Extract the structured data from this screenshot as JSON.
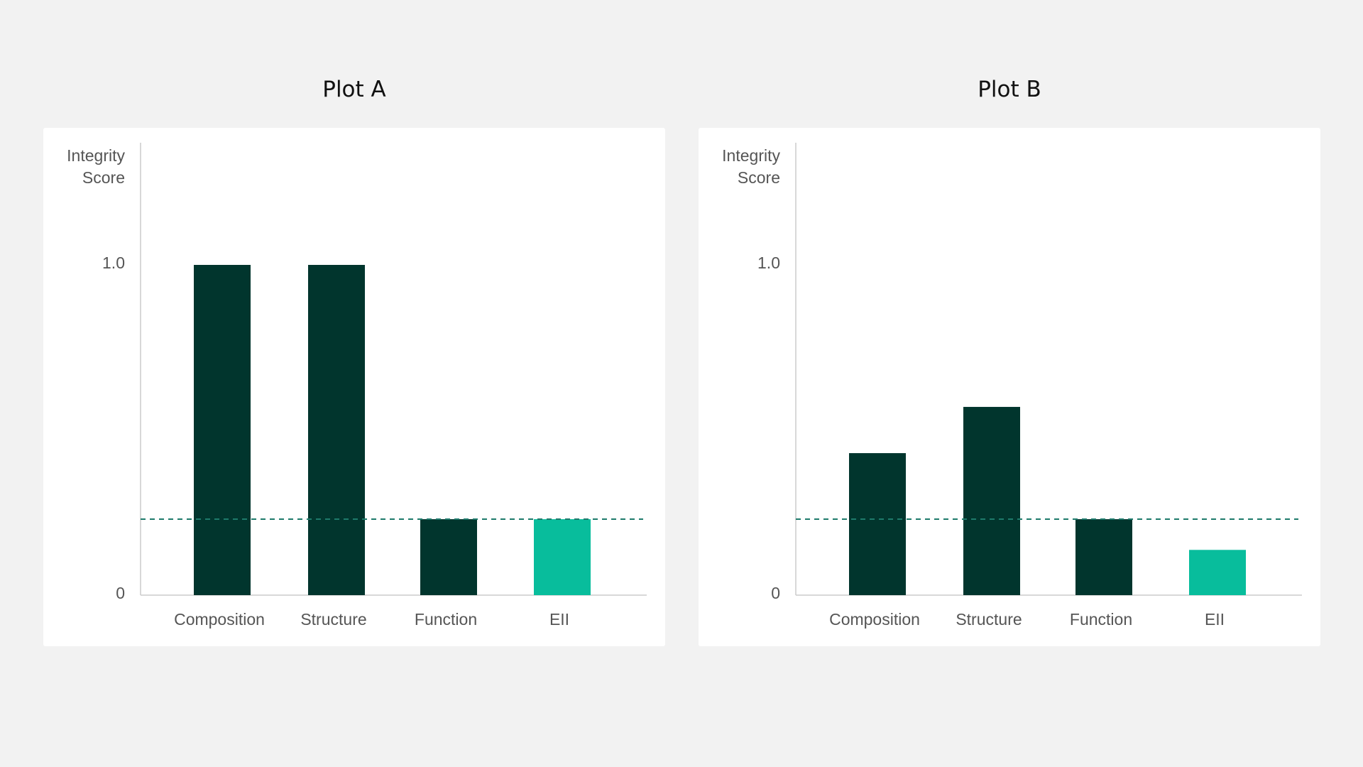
{
  "chart_data": [
    {
      "type": "bar",
      "title": "Plot A",
      "ylabel": [
        "Integrity",
        "Score"
      ],
      "categories": [
        "Composition",
        "Structure",
        "Function",
        "EII"
      ],
      "values": [
        1.0,
        1.0,
        0.23,
        0.23
      ],
      "ylim": [
        0,
        1.38
      ],
      "yticks": [
        "0",
        "1.0"
      ],
      "reference_line": 0.23,
      "colors": {
        "bar": "#01352d",
        "highlight": "#08bd9c",
        "reference": "#1e7a6b",
        "axis": "#cccccc"
      },
      "highlight_category": "EII",
      "grid": false
    },
    {
      "type": "bar",
      "title": "Plot B",
      "ylabel": [
        "Integrity",
        "Score"
      ],
      "categories": [
        "Composition",
        "Structure",
        "Function",
        "EII"
      ],
      "values": [
        0.43,
        0.57,
        0.23,
        0.137
      ],
      "ylim": [
        0,
        1.38
      ],
      "yticks": [
        "0",
        "1.0"
      ],
      "reference_line": 0.23,
      "colors": {
        "bar": "#01352d",
        "highlight": "#08bd9c",
        "reference": "#1e7a6b",
        "axis": "#cccccc"
      },
      "highlight_category": "EII",
      "grid": false
    }
  ]
}
